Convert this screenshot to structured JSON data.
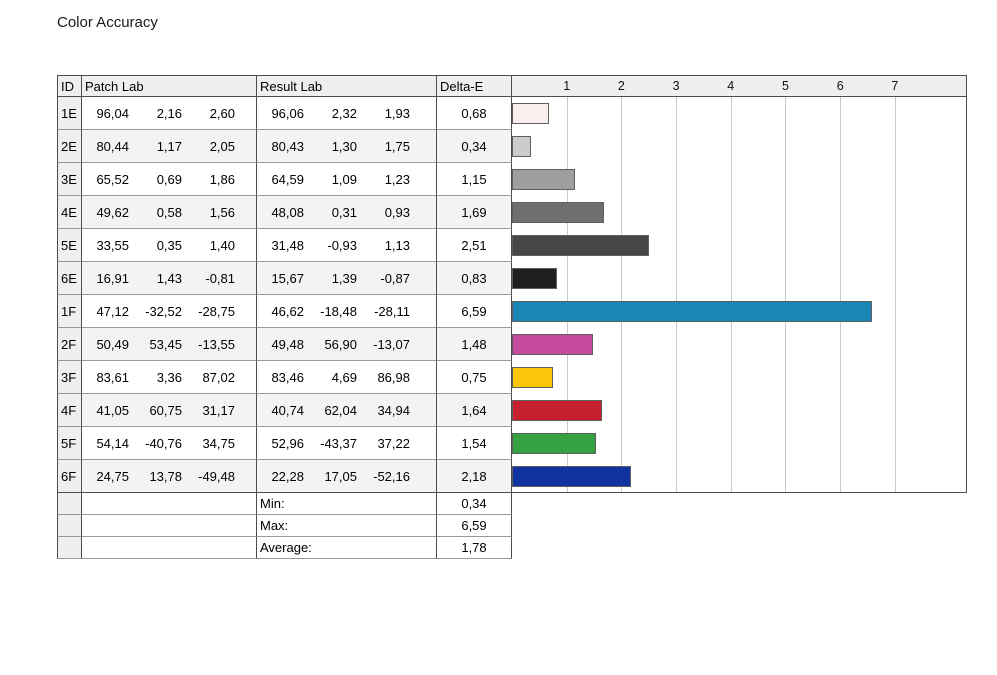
{
  "title": "Color Accuracy",
  "table": {
    "headers": {
      "id": "ID",
      "patch": "Patch Lab",
      "result": "Result Lab",
      "delta": "Delta-E"
    },
    "rows": [
      {
        "id": "1E",
        "patch": [
          "96,04",
          "2,16",
          "2,60"
        ],
        "result": [
          "96,06",
          "2,32",
          "1,93"
        ],
        "delta": "0,68",
        "value": 0.68,
        "color": "#f9efed"
      },
      {
        "id": "2E",
        "patch": [
          "80,44",
          "1,17",
          "2,05"
        ],
        "result": [
          "80,43",
          "1,30",
          "1,75"
        ],
        "delta": "0,34",
        "value": 0.34,
        "color": "#cccccc"
      },
      {
        "id": "3E",
        "patch": [
          "65,52",
          "0,69",
          "1,86"
        ],
        "result": [
          "64,59",
          "1,09",
          "1,23"
        ],
        "delta": "1,15",
        "value": 1.15,
        "color": "#9e9e9e"
      },
      {
        "id": "4E",
        "patch": [
          "49,62",
          "0,58",
          "1,56"
        ],
        "result": [
          "48,08",
          "0,31",
          "0,93"
        ],
        "delta": "1,69",
        "value": 1.69,
        "color": "#6f6f6f"
      },
      {
        "id": "5E",
        "patch": [
          "33,55",
          "0,35",
          "1,40"
        ],
        "result": [
          "31,48",
          "-0,93",
          "1,13"
        ],
        "delta": "2,51",
        "value": 2.51,
        "color": "#474747"
      },
      {
        "id": "6E",
        "patch": [
          "16,91",
          "1,43",
          "-0,81"
        ],
        "result": [
          "15,67",
          "1,39",
          "-0,87"
        ],
        "delta": "0,83",
        "value": 0.83,
        "color": "#1f1f1f"
      },
      {
        "id": "1F",
        "patch": [
          "47,12",
          "-32,52",
          "-28,75"
        ],
        "result": [
          "46,62",
          "-18,48",
          "-28,11"
        ],
        "delta": "6,59",
        "value": 6.59,
        "color": "#1a86b4"
      },
      {
        "id": "2F",
        "patch": [
          "50,49",
          "53,45",
          "-13,55"
        ],
        "result": [
          "49,48",
          "56,90",
          "-13,07"
        ],
        "delta": "1,48",
        "value": 1.48,
        "color": "#c44b9d"
      },
      {
        "id": "3F",
        "patch": [
          "83,61",
          "3,36",
          "87,02"
        ],
        "result": [
          "83,46",
          "4,69",
          "86,98"
        ],
        "delta": "0,75",
        "value": 0.75,
        "color": "#fdc50a"
      },
      {
        "id": "4F",
        "patch": [
          "41,05",
          "60,75",
          "31,17"
        ],
        "result": [
          "40,74",
          "62,04",
          "34,94"
        ],
        "delta": "1,64",
        "value": 1.64,
        "color": "#c6202f"
      },
      {
        "id": "5F",
        "patch": [
          "54,14",
          "-40,76",
          "34,75"
        ],
        "result": [
          "52,96",
          "-43,37",
          "37,22"
        ],
        "delta": "1,54",
        "value": 1.54,
        "color": "#36a140"
      },
      {
        "id": "6F",
        "patch": [
          "24,75",
          "13,78",
          "-49,48"
        ],
        "result": [
          "22,28",
          "17,05",
          "-52,16"
        ],
        "delta": "2,18",
        "value": 2.18,
        "color": "#10339f"
      }
    ],
    "summary": [
      {
        "label": "Min:",
        "value": "0,34"
      },
      {
        "label": "Max:",
        "value": "6,59"
      },
      {
        "label": "Average:",
        "value": "1,78"
      }
    ]
  },
  "chart_data": {
    "type": "bar",
    "orientation": "horizontal",
    "title": "Color Accuracy",
    "categories": [
      "1E",
      "2E",
      "3E",
      "4E",
      "5E",
      "6E",
      "1F",
      "2F",
      "3F",
      "4F",
      "5F",
      "6F"
    ],
    "values": [
      0.68,
      0.34,
      1.15,
      1.69,
      2.51,
      0.83,
      6.59,
      1.48,
      0.75,
      1.64,
      1.54,
      2.18
    ],
    "bar_colors": [
      "#f9efed",
      "#cccccc",
      "#9e9e9e",
      "#6f6f6f",
      "#474747",
      "#1f1f1f",
      "#1a86b4",
      "#c44b9d",
      "#fdc50a",
      "#c6202f",
      "#36a140",
      "#10339f"
    ],
    "xlabel": "Delta-E",
    "xlim": [
      0,
      8.3
    ],
    "ticks": [
      1,
      2,
      3,
      4,
      5,
      6,
      7
    ],
    "grid": true,
    "legend": false,
    "stats": {
      "min": 0.34,
      "max": 6.59,
      "average": 1.78
    }
  }
}
